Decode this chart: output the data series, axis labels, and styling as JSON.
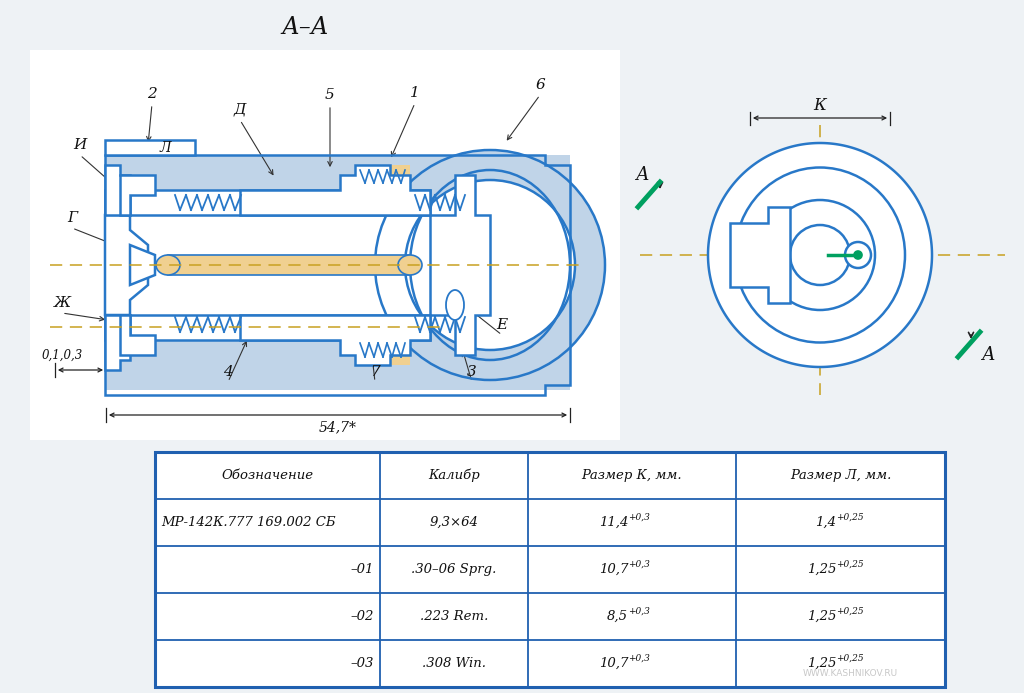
{
  "title": "А–А",
  "bg_color": "#eef2f5",
  "white": "#ffffff",
  "blue": "#2878c8",
  "orange": "#f0d090",
  "hatch_color": "#c0d4e8",
  "dim_color": "#222222",
  "table_border": "#2060b0",
  "table_header": [
    "Обозначение",
    "Калибр",
    "Размер К, мм.",
    "Размер Л, мм."
  ],
  "row0": [
    "МР-142К.777 169.002 СБ",
    "9,3×64",
    "11,4",
    "+0,3",
    "1,4",
    "+0,25"
  ],
  "row1": [
    "–01",
    ".30–06 Sprg.",
    "10,7",
    "+0,3",
    "1,25",
    "+0,25"
  ],
  "row2": [
    "–02",
    ".223 Rem.",
    "8,5",
    "+0,3",
    "1,25",
    "+0,25"
  ],
  "row3": [
    "–03",
    ".308 Win.",
    "10,7",
    "+0,3",
    "1,25",
    "+0,25"
  ],
  "watermark": "WWW.KASHNIKOV.RU",
  "dim_547": "54,7*",
  "dim_013": "0,1,0,3",
  "lbl_K": "К",
  "lbl_L": "Л",
  "lbl_D": "Д",
  "lbl_I": "И",
  "lbl_G": "Г",
  "lbl_Zh": "Ж",
  "lbl_E": "Е",
  "lbl_A": "А",
  "green": "#00a060"
}
